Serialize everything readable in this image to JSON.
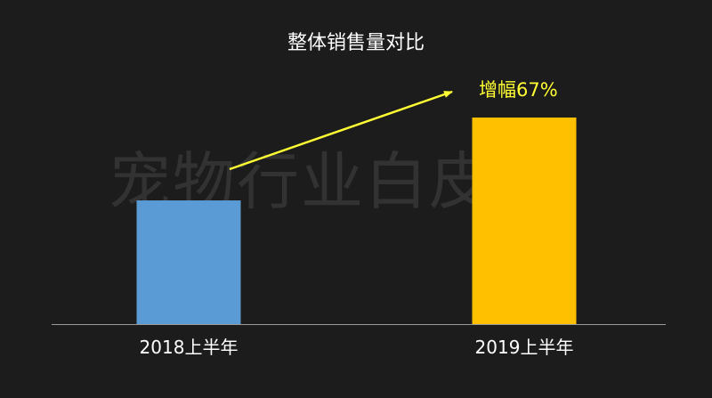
{
  "chart_data": {
    "type": "bar",
    "title": "整体销售量对比",
    "categories": [
      "2018上半年",
      "2019上半年"
    ],
    "series": [
      {
        "values": [
          1.0,
          1.67
        ]
      }
    ],
    "colors": [
      "#5b9bd5",
      "#ffc000"
    ],
    "annotation": {
      "text": "增幅67%",
      "color": "#ffff33"
    },
    "xlabel": "",
    "ylabel": "",
    "grid": false
  },
  "watermark": "宠物行业白皮书",
  "colors": {
    "background": "#1c1c1c",
    "axis": "#9a9a9a",
    "text": "#ffffff",
    "arrow": "#ffff33"
  }
}
